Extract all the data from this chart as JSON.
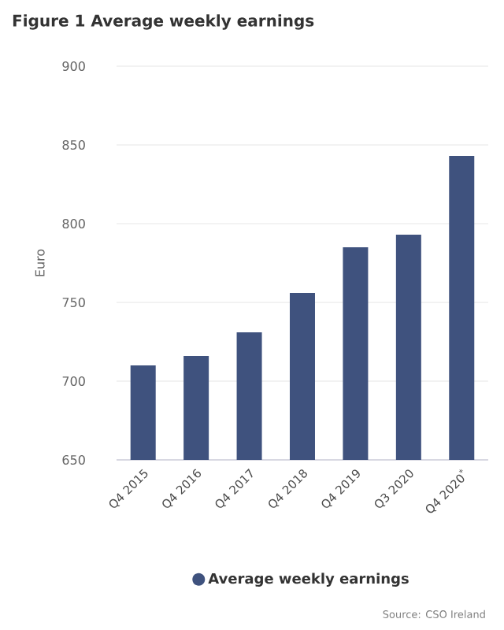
{
  "chart_data": {
    "type": "bar",
    "title": "Figure 1 Average weekly earnings",
    "ylabel": "Euro",
    "categories": [
      "Q4 2015",
      "Q4 2016",
      "Q4 2017",
      "Q4 2018",
      "Q4 2019",
      "Q3 2020",
      "Q4 2020$^{*}$"
    ],
    "series": [
      {
        "name": "Average weekly earnings",
        "color": "#3f527e",
        "values": [
          710,
          716,
          731,
          756,
          785,
          793,
          843
        ]
      }
    ],
    "ylim": [
      650,
      900
    ],
    "yticks": [
      650,
      700,
      750,
      800,
      850,
      900
    ],
    "grid": "y",
    "legend": "bottom",
    "annotations": [
      "Source: CSO Ireland"
    ]
  }
}
